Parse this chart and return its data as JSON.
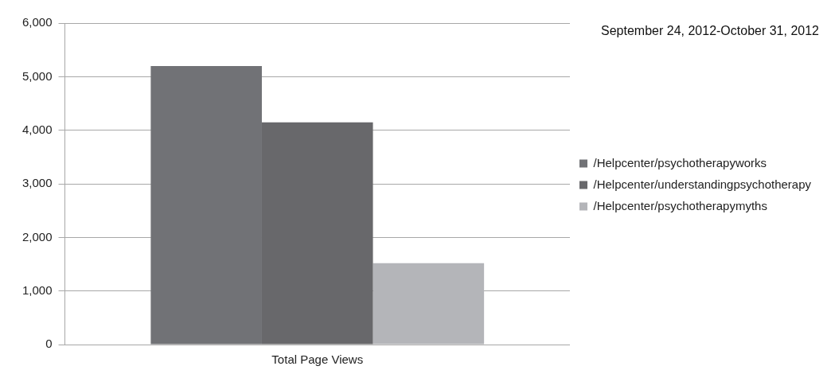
{
  "chart_data": {
    "type": "bar",
    "title": "September 24, 2012-October 31, 2012",
    "categories": [
      "Total Page Views"
    ],
    "series": [
      {
        "name": "/Helpcenter/psychotherapyworks",
        "color": "#717276",
        "values": [
          5200
        ]
      },
      {
        "name": "/Helpcenter/understandingpsychotherapy",
        "color": "#68686b",
        "values": [
          4150
        ]
      },
      {
        "name": "/Helpcenter/psychotherapymyths",
        "color": "#b4b5b9",
        "values": [
          1520
        ]
      }
    ],
    "ylim": [
      0,
      6000
    ],
    "yticks": [
      {
        "value": 0,
        "label": "0"
      },
      {
        "value": 1000,
        "label": "1,000"
      },
      {
        "value": 2000,
        "label": "2,000"
      },
      {
        "value": 3000,
        "label": "3,000"
      },
      {
        "value": 4000,
        "label": "4,000"
      },
      {
        "value": 5000,
        "label": "5,000"
      },
      {
        "value": 6000,
        "label": "6,000"
      }
    ],
    "grid": "y",
    "legend": "right"
  }
}
